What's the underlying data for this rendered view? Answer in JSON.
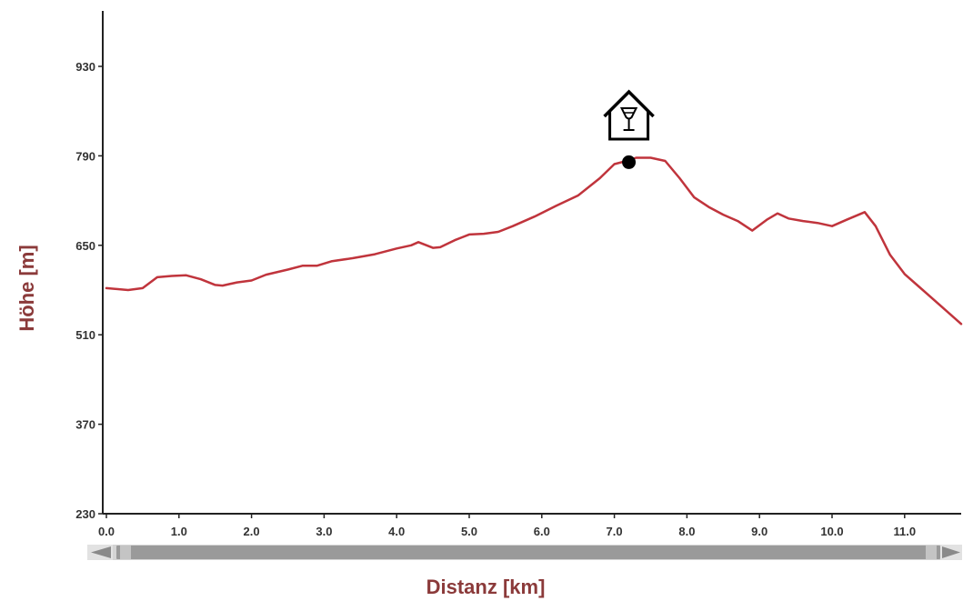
{
  "chart_data": {
    "type": "line",
    "xlabel": "Distanz [km]",
    "ylabel": "Höhe [m]",
    "xlim": [
      0,
      11.8
    ],
    "ylim": [
      230,
      1020
    ],
    "x_ticks": [
      "0.0",
      "1.0",
      "2.0",
      "3.0",
      "4.0",
      "5.0",
      "6.0",
      "7.0",
      "8.0",
      "9.0",
      "10.0",
      "11.0"
    ],
    "y_ticks": [
      "230",
      "370",
      "510",
      "650",
      "790",
      "930"
    ],
    "grid": false,
    "legend": "none",
    "series": [
      {
        "color": "#c0343c",
        "x": [
          0.0,
          0.3,
          0.5,
          0.7,
          0.9,
          1.1,
          1.3,
          1.5,
          1.6,
          1.8,
          2.0,
          2.2,
          2.5,
          2.7,
          2.9,
          3.1,
          3.4,
          3.7,
          4.0,
          4.2,
          4.3,
          4.5,
          4.6,
          4.8,
          5.0,
          5.2,
          5.4,
          5.6,
          5.9,
          6.2,
          6.5,
          6.8,
          7.0,
          7.2,
          7.3,
          7.5,
          7.7,
          7.9,
          8.1,
          8.3,
          8.5,
          8.7,
          8.9,
          9.1,
          9.25,
          9.4,
          9.6,
          9.8,
          10.0,
          10.2,
          10.45,
          10.6,
          10.8,
          11.0,
          11.2,
          11.5,
          11.8
        ],
        "y": [
          583,
          580,
          583,
          600,
          602,
          603,
          597,
          588,
          587,
          592,
          595,
          604,
          612,
          618,
          618,
          625,
          630,
          636,
          645,
          650,
          655,
          646,
          647,
          658,
          667,
          668,
          671,
          680,
          695,
          712,
          728,
          755,
          777,
          783,
          787,
          787,
          782,
          755,
          725,
          710,
          698,
          688,
          673,
          690,
          700,
          692,
          688,
          685,
          680,
          690,
          702,
          680,
          635,
          605,
          585,
          555,
          527
        ]
      }
    ],
    "markers": [
      {
        "x": 7.2,
        "y": 780,
        "symbol": "dot"
      }
    ],
    "poi_icons": [
      {
        "x": 7.2,
        "name": "restaurant-hut-icon"
      }
    ],
    "scrollbar": {
      "visible_fraction": 1.0
    }
  },
  "colors": {
    "line": "#c0343c",
    "axis": "#222222",
    "axis_title": "#8b3a3a",
    "scrollbar_track": "#d0d0d0",
    "scrollbar_thumb": "#999999"
  }
}
